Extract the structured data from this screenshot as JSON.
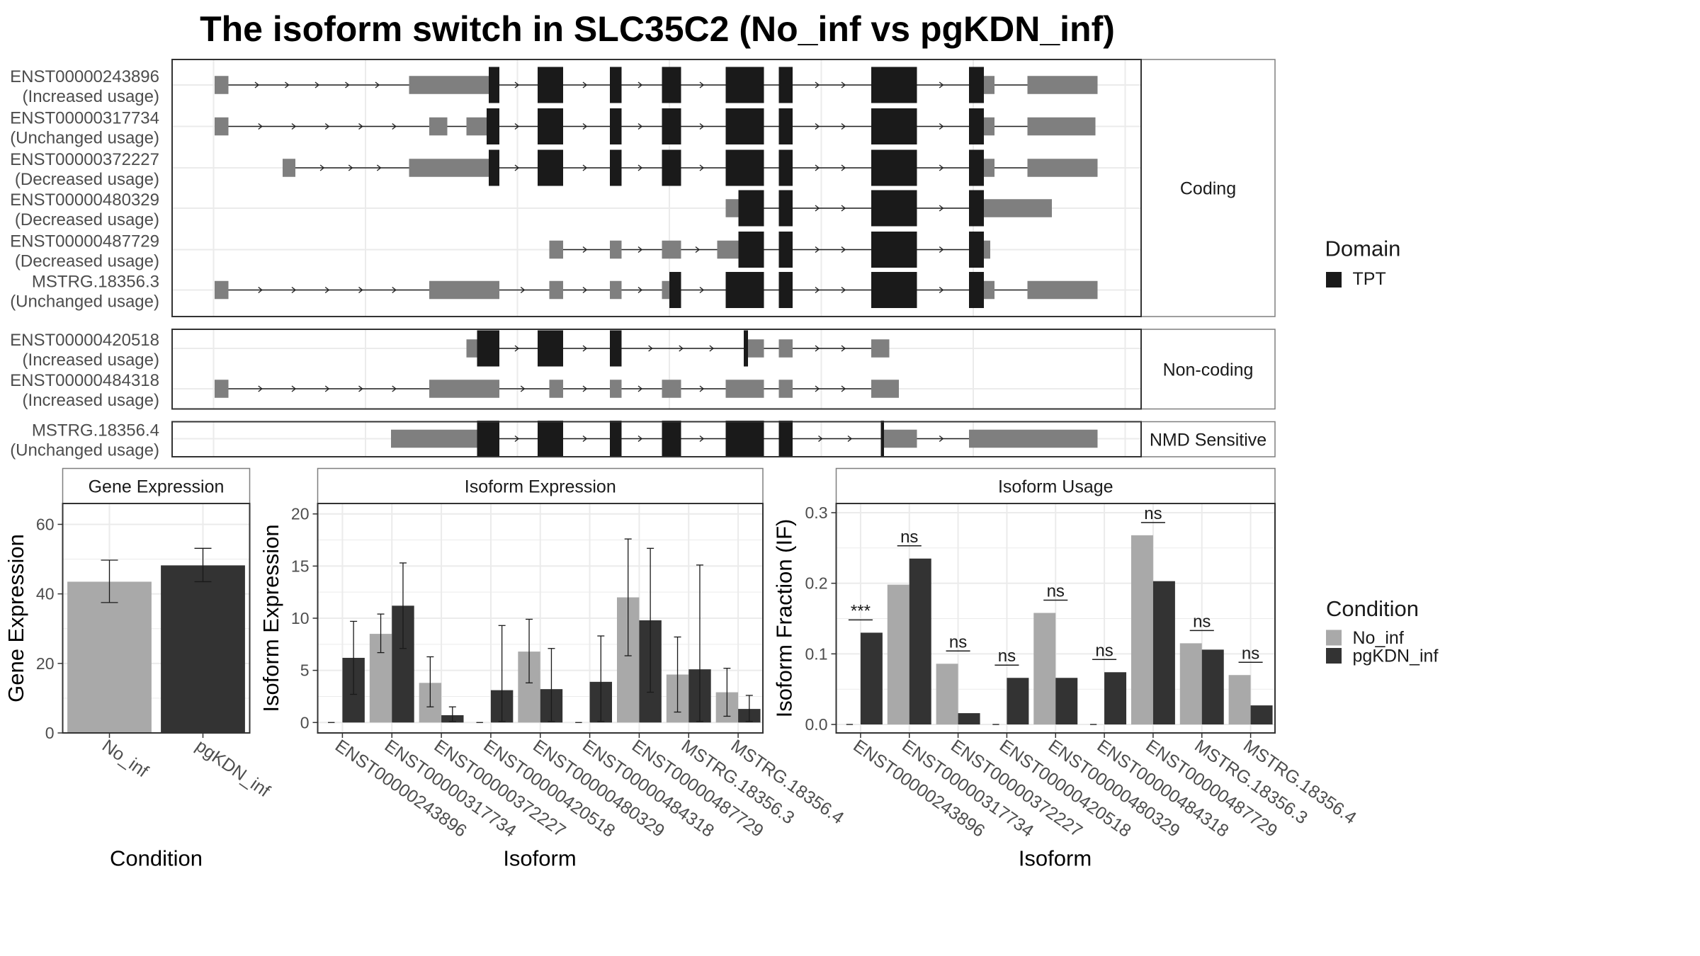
{
  "title": "The isoform switch in SLC35C2 (No_inf vs pgKDN_inf)",
  "colors": {
    "domain": "#1a1a1a",
    "utr": "#7f7f7f",
    "intron": "#222222",
    "no_inf": "#a9a9a9",
    "pgkdn_inf": "#333333",
    "grid": "#ebebeb",
    "strip_border": "#7f7f7f",
    "panel_border": "#333333"
  },
  "structure": {
    "groups": [
      {
        "name": "Coding",
        "transcripts": [
          {
            "id": "ENST00000243896",
            "usage": "(Increased usage)",
            "exons": [
              [
                202,
                215,
                "u"
              ],
              [
                385,
                449,
                "u"
              ],
              [
                449,
                460,
                "u"
              ],
              [
                460,
                470,
                "d"
              ],
              [
                506,
                530,
                "d"
              ],
              [
                574,
                585,
                "d"
              ],
              [
                623,
                641,
                "d"
              ],
              [
                683,
                719,
                "d"
              ],
              [
                733,
                746,
                "d"
              ],
              [
                820,
                863,
                "d"
              ],
              [
                912,
                926,
                "d"
              ],
              [
                926,
                936,
                "u"
              ],
              [
                967,
                982,
                "u"
              ],
              [
                982,
                1033,
                "u"
              ]
            ]
          },
          {
            "id": "ENST00000317734",
            "usage": "(Unchanged usage)",
            "exons": [
              [
                202,
                215,
                "u"
              ],
              [
                404,
                413,
                "u"
              ],
              [
                413,
                421,
                "u"
              ],
              [
                439,
                458,
                "u"
              ],
              [
                458,
                470,
                "d"
              ],
              [
                506,
                530,
                "d"
              ],
              [
                574,
                585,
                "d"
              ],
              [
                623,
                641,
                "d"
              ],
              [
                683,
                719,
                "d"
              ],
              [
                733,
                746,
                "d"
              ],
              [
                820,
                863,
                "d"
              ],
              [
                912,
                926,
                "d"
              ],
              [
                926,
                936,
                "u"
              ],
              [
                967,
                982,
                "u"
              ],
              [
                982,
                1031,
                "u"
              ]
            ]
          },
          {
            "id": "ENST00000372227",
            "usage": "(Decreased usage)",
            "exons": [
              [
                266,
                278,
                "u"
              ],
              [
                385,
                449,
                "u"
              ],
              [
                449,
                460,
                "u"
              ],
              [
                460,
                470,
                "d"
              ],
              [
                506,
                530,
                "d"
              ],
              [
                574,
                585,
                "d"
              ],
              [
                623,
                641,
                "d"
              ],
              [
                683,
                719,
                "d"
              ],
              [
                733,
                746,
                "d"
              ],
              [
                820,
                863,
                "d"
              ],
              [
                912,
                926,
                "d"
              ],
              [
                926,
                936,
                "u"
              ],
              [
                967,
                982,
                "u"
              ],
              [
                982,
                1033,
                "u"
              ]
            ]
          },
          {
            "id": "ENST00000480329",
            "usage": "(Decreased usage)",
            "exons": [
              [
                683,
                695,
                "u"
              ],
              [
                695,
                719,
                "d"
              ],
              [
                733,
                746,
                "d"
              ],
              [
                820,
                863,
                "d"
              ],
              [
                912,
                926,
                "d"
              ],
              [
                926,
                946,
                "u"
              ],
              [
                946,
                990,
                "u"
              ]
            ]
          },
          {
            "id": "ENST00000487729",
            "usage": "(Decreased usage)",
            "exons": [
              [
                517,
                530,
                "u"
              ],
              [
                574,
                585,
                "u"
              ],
              [
                623,
                641,
                "u"
              ],
              [
                675,
                695,
                "u"
              ],
              [
                695,
                719,
                "d"
              ],
              [
                733,
                746,
                "d"
              ],
              [
                820,
                863,
                "d"
              ],
              [
                912,
                926,
                "d"
              ],
              [
                926,
                932,
                "u"
              ]
            ]
          },
          {
            "id": "MSTRG.18356.3",
            "usage": "(Unchanged usage)",
            "exons": [
              [
                202,
                215,
                "u"
              ],
              [
                404,
                470,
                "u"
              ],
              [
                517,
                530,
                "u"
              ],
              [
                574,
                585,
                "u"
              ],
              [
                623,
                630,
                "u"
              ],
              [
                630,
                641,
                "d"
              ],
              [
                683,
                719,
                "d"
              ],
              [
                733,
                746,
                "d"
              ],
              [
                820,
                863,
                "d"
              ],
              [
                912,
                926,
                "d"
              ],
              [
                926,
                936,
                "u"
              ],
              [
                967,
                982,
                "u"
              ],
              [
                982,
                1033,
                "u"
              ]
            ]
          }
        ]
      },
      {
        "name": "Non-coding",
        "transcripts": [
          {
            "id": "ENST00000420518",
            "usage": "(Increased usage)",
            "exons": [
              [
                439,
                449,
                "u"
              ],
              [
                449,
                470,
                "d"
              ],
              [
                506,
                530,
                "d"
              ],
              [
                574,
                585,
                "d"
              ],
              [
                700,
                704,
                "d"
              ],
              [
                704,
                719,
                "u"
              ],
              [
                733,
                746,
                "u"
              ],
              [
                820,
                837,
                "u"
              ]
            ]
          },
          {
            "id": "ENST00000484318",
            "usage": "(Increased usage)",
            "exons": [
              [
                202,
                215,
                "u"
              ],
              [
                404,
                470,
                "u"
              ],
              [
                517,
                530,
                "u"
              ],
              [
                574,
                585,
                "u"
              ],
              [
                623,
                641,
                "u"
              ],
              [
                683,
                719,
                "u"
              ],
              [
                733,
                746,
                "u"
              ],
              [
                820,
                846,
                "u"
              ]
            ]
          }
        ]
      },
      {
        "name": "NMD Sensitive",
        "transcripts": [
          {
            "id": "MSTRG.18356.4",
            "usage": "(Unchanged usage)",
            "exons": [
              [
                368,
                449,
                "u"
              ],
              [
                449,
                470,
                "d"
              ],
              [
                506,
                530,
                "d"
              ],
              [
                574,
                585,
                "d"
              ],
              [
                623,
                641,
                "d"
              ],
              [
                683,
                719,
                "d"
              ],
              [
                733,
                746,
                "d"
              ],
              [
                829,
                832,
                "d"
              ],
              [
                832,
                851,
                "u"
              ],
              [
                851,
                863,
                "u"
              ],
              [
                912,
                1033,
                "u"
              ]
            ]
          }
        ]
      }
    ]
  },
  "legends": {
    "domain_title": "Domain",
    "domain_items": [
      {
        "label": "TPT",
        "color": "#1a1a1a"
      }
    ],
    "condition_title": "Condition",
    "condition_items": [
      {
        "label": "No_inf",
        "color": "#a9a9a9"
      },
      {
        "label": "pgKDN_inf",
        "color": "#333333"
      }
    ]
  },
  "chart_data": [
    {
      "type": "bar",
      "title": "Gene Expression",
      "xlabel": "Condition",
      "ylabel": "Gene Expression",
      "categories": [
        "No_inf",
        "pgKDN_inf"
      ],
      "values": [
        43.5,
        48.2
      ],
      "error_low": [
        37.5,
        43.5
      ],
      "error_high": [
        49.7,
        53.1
      ],
      "ylim": [
        0,
        66
      ],
      "yticks": [
        0,
        20,
        40,
        60
      ]
    },
    {
      "type": "bar",
      "title": "Isoform Expression",
      "xlabel": "Isoform",
      "ylabel": "Isoform Expression",
      "categories": [
        "ENST00000243896",
        "ENST00000317734",
        "ENST00000372227",
        "ENST00000420518",
        "ENST00000480329",
        "ENST00000484318",
        "ENST00000487729",
        "MSTRG.18356.3",
        "MSTRG.18356.4"
      ],
      "ylim": [
        -1,
        21
      ],
      "yticks": [
        0,
        5,
        10,
        15,
        20
      ],
      "series": [
        {
          "name": "No_inf",
          "values": [
            0,
            8.5,
            3.8,
            0,
            6.8,
            0,
            12.0,
            4.6,
            2.9
          ],
          "error_low": [
            0,
            6.7,
            1.5,
            0,
            3.8,
            0,
            6.4,
            1.0,
            0.6
          ],
          "error_high": [
            0,
            10.4,
            6.3,
            0,
            9.9,
            0,
            17.6,
            8.2,
            5.2
          ]
        },
        {
          "name": "pgKDN_inf",
          "values": [
            6.2,
            11.2,
            0.7,
            3.1,
            3.2,
            3.9,
            9.8,
            5.1,
            1.3
          ],
          "error_low": [
            2.7,
            7.1,
            0.1,
            0.1,
            0.1,
            0.1,
            2.9,
            0.1,
            0.1
          ],
          "error_high": [
            9.7,
            15.3,
            1.5,
            9.3,
            7.1,
            8.3,
            16.7,
            15.1,
            2.6
          ]
        }
      ]
    },
    {
      "type": "bar",
      "title": "Isoform Usage",
      "xlabel": "Isoform",
      "ylabel": "Isoform Fraction (IF)",
      "categories": [
        "ENST00000243896",
        "ENST00000317734",
        "ENST00000372227",
        "ENST00000420518",
        "ENST00000480329",
        "ENST00000484318",
        "ENST00000487729",
        "MSTRG.18356.3",
        "MSTRG.18356.4"
      ],
      "ylim": [
        -0.012,
        0.313
      ],
      "yticks": [
        0.0,
        0.1,
        0.2,
        0.3
      ],
      "ytick_labels": [
        "0.0",
        "0.1",
        "0.2",
        "0.3"
      ],
      "series": [
        {
          "name": "No_inf",
          "values": [
            0,
            0.198,
            0.086,
            0,
            0.158,
            0,
            0.268,
            0.115,
            0.07
          ]
        },
        {
          "name": "pgKDN_inf",
          "values": [
            0.13,
            0.235,
            0.016,
            0.066,
            0.066,
            0.074,
            0.203,
            0.106,
            0.027
          ]
        }
      ],
      "significance": [
        "***",
        "ns",
        "ns",
        "ns",
        "ns",
        "ns",
        "ns",
        "ns",
        "ns"
      ]
    }
  ]
}
